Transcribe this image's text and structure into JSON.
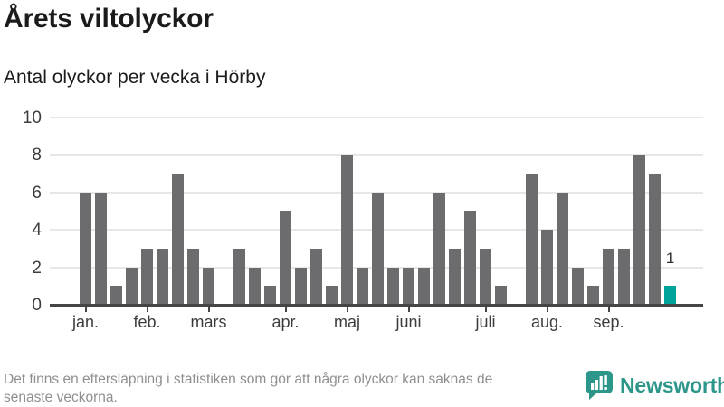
{
  "header": {
    "title": "Årets viltolyckor",
    "subtitle": "Antal olyckor per vecka i Hörby"
  },
  "chart_data": {
    "type": "bar",
    "title": "Årets viltolyckor",
    "subtitle": "Antal olyckor per vecka i Hörby",
    "x_unit": "vecka",
    "values": [
      6,
      6,
      1,
      2,
      3,
      3,
      7,
      3,
      2,
      0,
      3,
      2,
      1,
      5,
      2,
      3,
      1,
      8,
      2,
      6,
      2,
      2,
      2,
      6,
      3,
      5,
      3,
      1,
      0,
      7,
      4,
      6,
      2,
      1,
      3,
      3,
      8,
      7,
      1
    ],
    "highlight_last": true,
    "last_value_label": "1",
    "yticks": [
      0,
      2,
      4,
      6,
      8,
      10
    ],
    "ylim": [
      0,
      10
    ],
    "grid": true,
    "legend": "none",
    "bar_color": "#6c6c6f",
    "highlight_color": "#00a49b",
    "month_ticks": [
      {
        "label": "jan.",
        "week_index": 0
      },
      {
        "label": "feb.",
        "week_index": 4
      },
      {
        "label": "mars",
        "week_index": 8
      },
      {
        "label": "apr.",
        "week_index": 13
      },
      {
        "label": "maj",
        "week_index": 17
      },
      {
        "label": "juni",
        "week_index": 21
      },
      {
        "label": "juli",
        "week_index": 26
      },
      {
        "label": "aug.",
        "week_index": 30
      },
      {
        "label": "sep.",
        "week_index": 34
      }
    ]
  },
  "footer": {
    "note_line1": "Det finns en eftersläpning i statistiken som gör att några olyckor kan saknas de",
    "note_line2": "senaste veckorna.",
    "brand": "Newsworthy"
  },
  "colors": {
    "accent_teal": "#00a49b",
    "brand_teal": "#2d968b",
    "bar_gray": "#6c6c6f"
  }
}
